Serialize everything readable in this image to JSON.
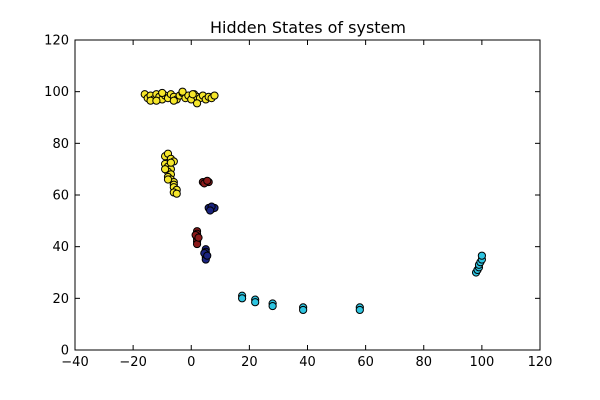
{
  "chart_data": {
    "type": "scatter",
    "title": "Hidden States of system",
    "xlabel": "",
    "ylabel": "",
    "xlim": [
      -40,
      120
    ],
    "ylim": [
      0,
      120
    ],
    "xticks": [
      "−40",
      "−20",
      "0",
      "20",
      "40",
      "60",
      "80",
      "100",
      "120"
    ],
    "xtick_values": [
      -40,
      -20,
      0,
      20,
      40,
      60,
      80,
      100,
      120
    ],
    "yticks": [
      "0",
      "20",
      "40",
      "60",
      "80",
      "100",
      "120"
    ],
    "ytick_values": [
      0,
      20,
      40,
      60,
      80,
      100,
      120
    ],
    "grid": false,
    "legend": "none",
    "series": [
      {
        "color": "#f5e62a",
        "points": [
          [
            -16,
            99
          ],
          [
            -15,
            97.5
          ],
          [
            -14,
            98.5
          ],
          [
            -13,
            97
          ],
          [
            -12,
            99
          ],
          [
            -11,
            98
          ],
          [
            -10,
            97
          ],
          [
            -9,
            98.5
          ],
          [
            -8,
            97.5
          ],
          [
            -7,
            99
          ],
          [
            -6,
            98
          ],
          [
            -5,
            97
          ],
          [
            -4,
            98.5
          ],
          [
            -3,
            99.5
          ],
          [
            -2,
            97.5
          ],
          [
            -1,
            98.5
          ],
          [
            0,
            97
          ],
          [
            1,
            99
          ],
          [
            2,
            98
          ],
          [
            3,
            97.5
          ],
          [
            4,
            98.5
          ],
          [
            5,
            97
          ],
          [
            6,
            98
          ],
          [
            7,
            97.5
          ],
          [
            8,
            98.5
          ],
          [
            -14,
            96.5
          ],
          [
            -10,
            99.5
          ],
          [
            -6,
            96.5
          ],
          [
            -3,
            100
          ],
          [
            2,
            95.5
          ],
          [
            0.5,
            99
          ],
          [
            -12,
            96.5
          ],
          [
            -9,
            75
          ],
          [
            -8,
            76
          ],
          [
            -7,
            74
          ],
          [
            -9,
            72
          ],
          [
            -8,
            71
          ],
          [
            -7,
            70
          ],
          [
            -8,
            69
          ],
          [
            -7,
            68
          ],
          [
            -8,
            67
          ],
          [
            -7,
            66
          ],
          [
            -6,
            65
          ],
          [
            -6,
            64
          ],
          [
            -6,
            63
          ],
          [
            -5,
            62
          ],
          [
            -6,
            61
          ],
          [
            -5,
            60.5
          ],
          [
            -6,
            73
          ],
          [
            -7,
            72.5
          ],
          [
            -9,
            70
          ],
          [
            -8,
            66
          ]
        ]
      },
      {
        "color": "#8b1a1a",
        "points": [
          [
            4,
            65
          ],
          [
            5,
            65
          ],
          [
            6,
            65
          ],
          [
            4.5,
            64.5
          ],
          [
            5.5,
            65.5
          ],
          [
            2,
            46
          ],
          [
            2,
            45
          ],
          [
            2,
            44
          ],
          [
            2,
            43
          ],
          [
            2,
            42
          ],
          [
            2,
            41
          ],
          [
            1.5,
            44.5
          ],
          [
            2.5,
            43.5
          ]
        ]
      },
      {
        "color": "#1a237e",
        "points": [
          [
            6,
            55
          ],
          [
            7,
            54.5
          ],
          [
            8,
            55
          ],
          [
            7,
            55.5
          ],
          [
            6.5,
            54
          ],
          [
            5,
            39
          ],
          [
            5,
            38
          ],
          [
            5,
            37
          ],
          [
            5,
            36
          ],
          [
            5,
            35
          ],
          [
            4.5,
            37.5
          ],
          [
            5.5,
            36.5
          ]
        ]
      },
      {
        "color": "#2ec4e0",
        "points": [
          [
            17.5,
            21
          ],
          [
            17.5,
            20
          ],
          [
            22,
            19.5
          ],
          [
            22,
            18.5
          ],
          [
            28,
            18
          ],
          [
            28,
            17
          ],
          [
            38.5,
            16.5
          ],
          [
            38.5,
            15.5
          ],
          [
            58,
            16.5
          ],
          [
            58,
            15.5
          ],
          [
            98,
            30
          ],
          [
            98.5,
            31
          ],
          [
            99,
            32
          ],
          [
            99,
            33
          ],
          [
            99.5,
            34
          ],
          [
            100,
            35
          ],
          [
            100,
            36.5
          ]
        ]
      }
    ]
  }
}
